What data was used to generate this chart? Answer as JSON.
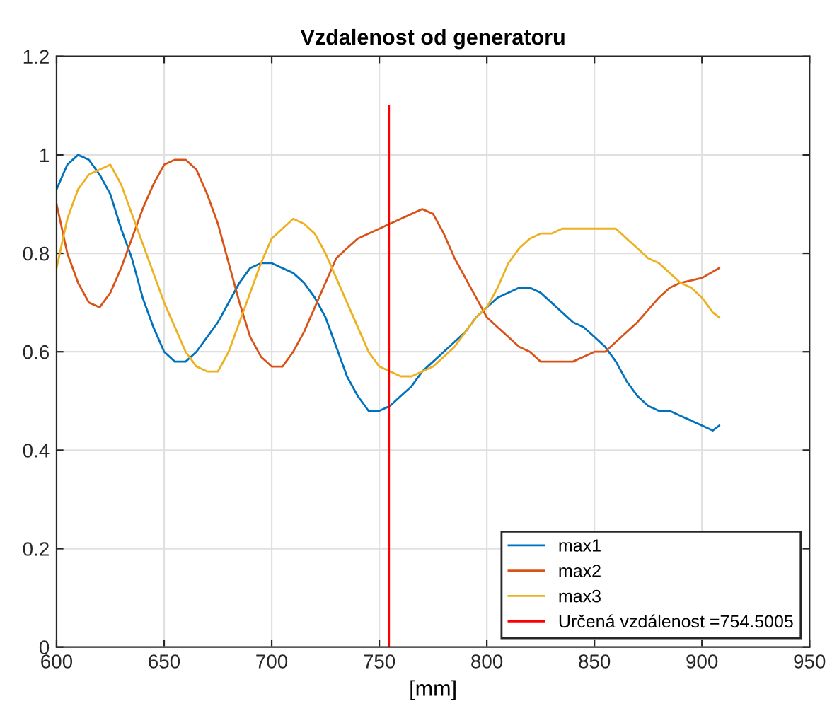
{
  "chart_data": {
    "type": "line",
    "title": "Vzdalenost od generatoru",
    "xlabel": "[mm]",
    "xlim": [
      600,
      950
    ],
    "xticks": [
      600,
      650,
      700,
      750,
      800,
      850,
      900,
      950
    ],
    "ylim": [
      0,
      1.2
    ],
    "yticks": [
      0,
      0.2,
      0.4,
      0.6,
      0.8,
      1,
      1.2
    ],
    "grid": true,
    "legend": "bottom right",
    "series": [
      {
        "name": "max1",
        "color": "#0072bd",
        "x": [
          600,
          605,
          610,
          615,
          620,
          625,
          630,
          635,
          640,
          645,
          650,
          655,
          660,
          665,
          670,
          675,
          680,
          685,
          690,
          695,
          700,
          705,
          710,
          715,
          720,
          725,
          730,
          735,
          740,
          745,
          750,
          755,
          760,
          765,
          770,
          775,
          780,
          785,
          790,
          795,
          800,
          805,
          810,
          815,
          820,
          825,
          830,
          835,
          840,
          845,
          850,
          855,
          860,
          865,
          870,
          875,
          880,
          885,
          890,
          895,
          900,
          905,
          908
        ],
        "values": [
          0.93,
          0.98,
          1.0,
          0.99,
          0.96,
          0.92,
          0.85,
          0.79,
          0.71,
          0.65,
          0.6,
          0.58,
          0.58,
          0.6,
          0.63,
          0.66,
          0.7,
          0.74,
          0.77,
          0.78,
          0.78,
          0.77,
          0.76,
          0.74,
          0.71,
          0.67,
          0.61,
          0.55,
          0.51,
          0.48,
          0.48,
          0.49,
          0.51,
          0.53,
          0.56,
          0.58,
          0.6,
          0.62,
          0.64,
          0.67,
          0.69,
          0.71,
          0.72,
          0.73,
          0.73,
          0.72,
          0.7,
          0.68,
          0.66,
          0.65,
          0.63,
          0.61,
          0.58,
          0.54,
          0.51,
          0.49,
          0.48,
          0.48,
          0.47,
          0.46,
          0.45,
          0.44,
          0.45
        ]
      },
      {
        "name": "max2",
        "color": "#d95319",
        "x": [
          600,
          605,
          610,
          615,
          620,
          625,
          630,
          635,
          640,
          645,
          650,
          655,
          660,
          665,
          670,
          675,
          680,
          685,
          690,
          695,
          700,
          705,
          710,
          715,
          720,
          725,
          730,
          735,
          740,
          745,
          750,
          755,
          760,
          765,
          770,
          775,
          780,
          785,
          790,
          795,
          800,
          805,
          810,
          815,
          820,
          825,
          830,
          835,
          840,
          845,
          850,
          855,
          860,
          870,
          880,
          885,
          890,
          900,
          908
        ],
        "values": [
          0.9,
          0.8,
          0.74,
          0.7,
          0.69,
          0.72,
          0.77,
          0.83,
          0.89,
          0.94,
          0.98,
          0.99,
          0.99,
          0.97,
          0.92,
          0.86,
          0.78,
          0.7,
          0.63,
          0.59,
          0.57,
          0.57,
          0.6,
          0.64,
          0.69,
          0.74,
          0.79,
          0.81,
          0.83,
          0.84,
          0.85,
          0.86,
          0.87,
          0.88,
          0.89,
          0.88,
          0.84,
          0.79,
          0.75,
          0.71,
          0.67,
          0.65,
          0.63,
          0.61,
          0.6,
          0.58,
          0.58,
          0.58,
          0.58,
          0.59,
          0.6,
          0.6,
          0.62,
          0.66,
          0.71,
          0.73,
          0.74,
          0.75,
          0.77
        ]
      },
      {
        "name": "max3",
        "color": "#edb120",
        "x": [
          600,
          605,
          610,
          615,
          620,
          625,
          630,
          635,
          640,
          645,
          650,
          655,
          660,
          665,
          670,
          675,
          680,
          685,
          690,
          695,
          700,
          705,
          710,
          715,
          720,
          725,
          730,
          735,
          740,
          745,
          750,
          755,
          760,
          765,
          770,
          775,
          780,
          785,
          790,
          795,
          800,
          805,
          810,
          815,
          820,
          825,
          830,
          835,
          840,
          845,
          850,
          855,
          860,
          865,
          870,
          875,
          880,
          885,
          890,
          895,
          900,
          905,
          908
        ],
        "values": [
          0.77,
          0.87,
          0.93,
          0.96,
          0.97,
          0.98,
          0.94,
          0.88,
          0.82,
          0.76,
          0.7,
          0.65,
          0.6,
          0.57,
          0.56,
          0.56,
          0.6,
          0.66,
          0.72,
          0.78,
          0.83,
          0.85,
          0.87,
          0.86,
          0.84,
          0.8,
          0.75,
          0.7,
          0.65,
          0.6,
          0.57,
          0.56,
          0.55,
          0.55,
          0.56,
          0.57,
          0.59,
          0.61,
          0.64,
          0.67,
          0.69,
          0.73,
          0.78,
          0.81,
          0.83,
          0.84,
          0.84,
          0.85,
          0.85,
          0.85,
          0.85,
          0.85,
          0.85,
          0.83,
          0.81,
          0.79,
          0.78,
          0.76,
          0.74,
          0.73,
          0.71,
          0.68,
          0.67
        ]
      },
      {
        "name": "Určená vzdálenost =754.5005",
        "color": "#ff0000",
        "x": [
          754.5005,
          754.5005
        ],
        "values": [
          0,
          1.1
        ]
      }
    ]
  }
}
